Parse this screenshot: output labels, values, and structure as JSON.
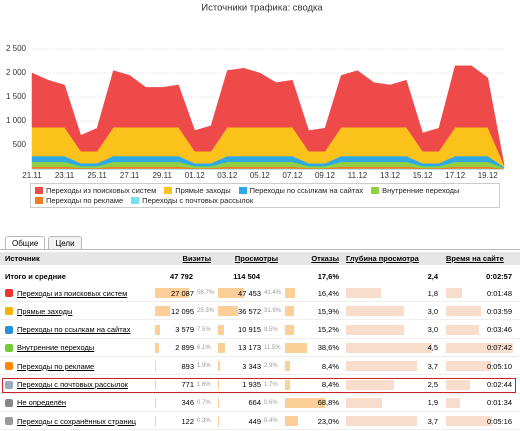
{
  "chart_data": {
    "type": "stacked-area",
    "title": "Источники трафика: сводка",
    "categories": [
      "21.11",
      null,
      "23.11",
      null,
      "25.11",
      null,
      "27.11",
      null,
      "29.11",
      null,
      "01.12",
      null,
      "03.12",
      null,
      "05.12",
      null,
      "07.12",
      null,
      "09.12",
      null,
      "11.12",
      null,
      "13.12",
      null,
      "15.12",
      null,
      "17.12",
      null,
      "19.12",
      null
    ],
    "series": [
      {
        "name": "Переходы из поисковых систем",
        "color": "#ef4a4a",
        "values": [
          1130,
          980,
          880,
          330,
          480,
          1180,
          1080,
          830,
          830,
          880,
          430,
          530,
          1180,
          1230,
          1130,
          930,
          980,
          430,
          480,
          1080,
          1180,
          930,
          880,
          980,
          380,
          480,
          1280,
          1280,
          1030,
          18
        ]
      },
      {
        "name": "Прямые заходы",
        "color": "#fbc21b",
        "values": [
          600,
          600,
          600,
          250,
          250,
          600,
          600,
          600,
          600,
          600,
          250,
          250,
          600,
          600,
          600,
          600,
          600,
          250,
          250,
          600,
          600,
          600,
          600,
          600,
          250,
          250,
          600,
          600,
          600,
          40
        ]
      },
      {
        "name": "Переходы по ссылкам на сайтах",
        "color": "#2ea9e6",
        "values": [
          120,
          120,
          120,
          60,
          60,
          120,
          120,
          120,
          120,
          120,
          60,
          60,
          120,
          120,
          120,
          120,
          120,
          60,
          60,
          120,
          120,
          120,
          120,
          120,
          60,
          60,
          120,
          120,
          120,
          20
        ]
      },
      {
        "name": "Внутренние переходы",
        "color": "#8fd142",
        "values": [
          100,
          100,
          100,
          40,
          40,
          100,
          100,
          100,
          100,
          100,
          40,
          40,
          100,
          100,
          100,
          100,
          100,
          40,
          40,
          100,
          100,
          100,
          100,
          100,
          40,
          40,
          100,
          100,
          100,
          15
        ]
      },
      {
        "name": "Переходы по рекламе",
        "color": "#f27c25",
        "values": [
          40,
          40,
          40,
          15,
          15,
          40,
          40,
          40,
          40,
          40,
          15,
          15,
          40,
          40,
          40,
          40,
          40,
          15,
          15,
          40,
          40,
          40,
          40,
          40,
          15,
          15,
          40,
          40,
          40,
          5
        ]
      },
      {
        "name": "Переходы с почтовых рассылок",
        "color": "#78e2ec",
        "values": [
          10,
          10,
          10,
          5,
          5,
          10,
          10,
          10,
          10,
          10,
          5,
          5,
          10,
          10,
          10,
          10,
          10,
          5,
          5,
          10,
          10,
          10,
          10,
          10,
          5,
          5,
          10,
          10,
          10,
          2
        ]
      }
    ],
    "ylim": [
      0,
      3000
    ],
    "yticks": [
      500,
      {
        "value": 1000,
        "label": "1 000"
      },
      {
        "value": 1500,
        "label": "1 500"
      },
      {
        "value": 2000,
        "label": "2 000"
      },
      {
        "value": 2500,
        "label": "2 500"
      }
    ],
    "grid": true
  },
  "table": {
    "tabs": [
      "Общие",
      "Цели"
    ],
    "header": [
      "Источник",
      "Визиты",
      "Просмотры",
      "Отказы",
      "Глубина просмотра",
      "Время на сайте"
    ],
    "total": [
      "Итого и средние",
      "47 792",
      "114 504",
      "17,6%",
      "2,4",
      "0:02:57"
    ],
    "rows": [
      [
        "Переходы из поисковых систем",
        "27 087",
        "56.7%",
        "47 453",
        "41.4%",
        "16,4%",
        "1,8",
        "0:01:48"
      ],
      [
        "Прямые заходы",
        "12 095",
        "25.3%",
        "36 572",
        "31.9%",
        "15,9%",
        "3,0",
        "0:03:59"
      ],
      [
        "Переходы по ссылкам на сайтах",
        "3 579",
        "7.5%",
        "10 915",
        "9.5%",
        "15,2%",
        "3,0",
        "0:03:46"
      ],
      [
        "Внутренние переходы",
        "2 899",
        "6.1%",
        "13 173",
        "11.5%",
        "38,6%",
        "4,5",
        "0:07:42"
      ],
      [
        "Переходы по рекламе",
        "893",
        "1.9%",
        "3 343",
        "2.9%",
        "8,4%",
        "3,7",
        "0:05:10"
      ],
      [
        "Переходы с почтовых рассылок",
        "771",
        "1.6%",
        "1 935",
        "1.7%",
        "8,4%",
        "2,5",
        "0:02:44"
      ],
      [
        "Не определён",
        "346",
        "0.7%",
        "664",
        "0.6%",
        "68,8%",
        "1,9",
        "0:01:34"
      ],
      [
        "Переходы с сохранённых страниц",
        "122",
        "0.3%",
        "449",
        "0.4%",
        "23,0%",
        "3,7",
        "0:05:16"
      ]
    ]
  }
}
